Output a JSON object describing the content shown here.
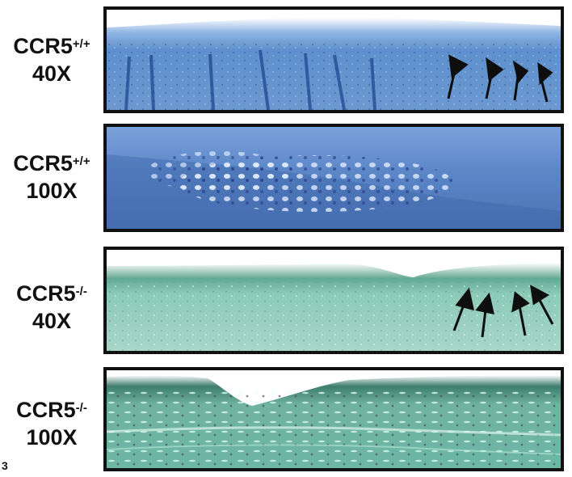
{
  "figure_number": "3",
  "panels": [
    {
      "genotype": "CCR5",
      "superscript": "+/+",
      "magnification": "40X",
      "stain": "#5b8fc9",
      "arrows": 4
    },
    {
      "genotype": "CCR5",
      "superscript": "+/+",
      "magnification": "100X",
      "stain": "#4b73b6",
      "arrows": 0
    },
    {
      "genotype": "CCR5",
      "superscript": "-/-",
      "magnification": "40X",
      "stain": "#84c7b5",
      "arrows": 4
    },
    {
      "genotype": "CCR5",
      "superscript": "-/-",
      "magnification": "100X",
      "stain": "#6db8a6",
      "arrows": 0
    }
  ]
}
